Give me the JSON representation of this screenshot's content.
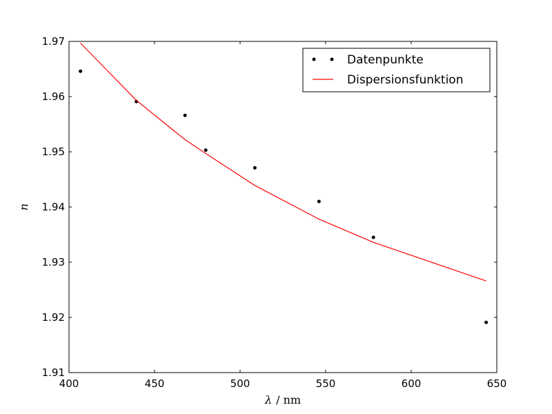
{
  "chart_data": {
    "type": "scatter",
    "xlabel": {
      "symbol": "λ",
      "unit": "/ nm"
    },
    "ylabel": "n",
    "xlim": [
      400,
      650
    ],
    "ylim": [
      1.91,
      1.97
    ],
    "xticks": [
      400,
      450,
      500,
      550,
      600,
      650
    ],
    "yticks": [
      1.91,
      1.92,
      1.93,
      1.94,
      1.95,
      1.96,
      1.97
    ],
    "ytick_labels": [
      "1.91",
      "1.92",
      "1.93",
      "1.94",
      "1.95",
      "1.96",
      "1.97"
    ],
    "grid": false,
    "legend_position": "top-right",
    "series": [
      {
        "name": "Datenpunkte",
        "style": "markers",
        "color": "#000000",
        "x": [
          406.7,
          439.4,
          467.8,
          479.9,
          508.6,
          546.1,
          577.9,
          643.8
        ],
        "y": [
          1.9646,
          1.9591,
          1.9566,
          1.9503,
          1.9471,
          1.941,
          1.9345,
          1.9191
        ]
      },
      {
        "name": "Dispersionsfunktion",
        "style": "line",
        "color": "#ff0000",
        "x": [
          406.7,
          439.4,
          467.8,
          479.9,
          508.6,
          546.1,
          577.9,
          643.8
        ],
        "y": [
          1.9697,
          1.9593,
          1.9522,
          1.9497,
          1.9439,
          1.9378,
          1.9336,
          1.9266
        ]
      }
    ]
  }
}
